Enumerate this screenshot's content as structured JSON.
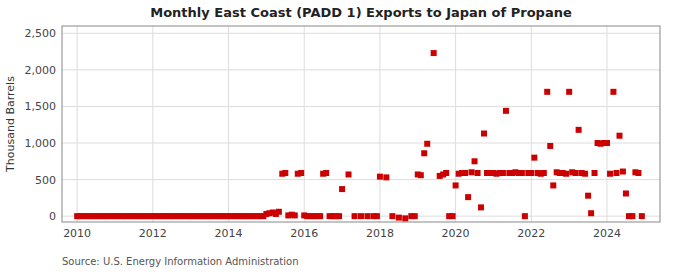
{
  "chart_data": {
    "type": "scatter",
    "title": "Monthly East Coast (PADD 1) Exports to Japan of Propane",
    "ylabel": "Thousand Barrels",
    "source": "Source: U.S. Energy Information Administration",
    "color": "#cc0000",
    "marker": "square",
    "grid": true,
    "xlim": [
      2009.6,
      2025.4
    ],
    "ylim": [
      -80,
      2600
    ],
    "xticks": [
      2010,
      2012,
      2014,
      2016,
      2018,
      2020,
      2022,
      2024
    ],
    "yticks": [
      0,
      500,
      {
        "value": 1000,
        "label": "1,000"
      },
      {
        "value": 1500,
        "label": "1,500"
      },
      {
        "value": 2000,
        "label": "2,000"
      },
      {
        "value": 2500,
        "label": "2,500"
      }
    ],
    "x": [
      2010.0,
      2010.08,
      2010.17,
      2010.25,
      2010.33,
      2010.42,
      2010.5,
      2010.58,
      2010.67,
      2010.75,
      2010.83,
      2010.92,
      2011.0,
      2011.08,
      2011.17,
      2011.25,
      2011.33,
      2011.42,
      2011.5,
      2011.58,
      2011.67,
      2011.75,
      2011.83,
      2011.92,
      2012.0,
      2012.08,
      2012.17,
      2012.25,
      2012.33,
      2012.42,
      2012.5,
      2012.58,
      2012.67,
      2012.75,
      2012.83,
      2012.92,
      2013.0,
      2013.08,
      2013.17,
      2013.25,
      2013.33,
      2013.42,
      2013.5,
      2013.58,
      2013.67,
      2013.75,
      2013.83,
      2013.92,
      2014.0,
      2014.08,
      2014.17,
      2014.25,
      2014.33,
      2014.42,
      2014.5,
      2014.58,
      2014.67,
      2014.75,
      2014.83,
      2014.92,
      2015.0,
      2015.08,
      2015.17,
      2015.25,
      2015.33,
      2015.42,
      2015.5,
      2015.58,
      2015.67,
      2015.75,
      2015.83,
      2015.92,
      2016.0,
      2016.08,
      2016.17,
      2016.25,
      2016.33,
      2016.42,
      2016.5,
      2016.58,
      2016.67,
      2016.75,
      2016.83,
      2016.92,
      2017.0,
      2017.17,
      2017.33,
      2017.5,
      2017.67,
      2017.83,
      2017.92,
      2018.0,
      2018.17,
      2018.33,
      2018.5,
      2018.67,
      2018.83,
      2018.92,
      2019.0,
      2019.08,
      2019.17,
      2019.25,
      2019.42,
      2019.58,
      2019.67,
      2019.75,
      2019.83,
      2019.92,
      2020.0,
      2020.08,
      2020.17,
      2020.25,
      2020.33,
      2020.42,
      2020.5,
      2020.58,
      2020.67,
      2020.75,
      2020.83,
      2020.92,
      2021.0,
      2021.08,
      2021.17,
      2021.25,
      2021.33,
      2021.42,
      2021.5,
      2021.58,
      2021.67,
      2021.75,
      2021.83,
      2021.92,
      2022.0,
      2022.08,
      2022.17,
      2022.25,
      2022.33,
      2022.42,
      2022.5,
      2022.58,
      2022.67,
      2022.75,
      2022.83,
      2022.92,
      2023.0,
      2023.08,
      2023.17,
      2023.25,
      2023.33,
      2023.42,
      2023.5,
      2023.58,
      2023.67,
      2023.75,
      2023.83,
      2023.92,
      2024.0,
      2024.08,
      2024.17,
      2024.25,
      2024.33,
      2024.42,
      2024.5,
      2024.58,
      2024.67,
      2024.75,
      2024.83,
      2024.92
    ],
    "values": [
      0,
      0,
      0,
      0,
      0,
      0,
      0,
      0,
      0,
      0,
      0,
      0,
      0,
      0,
      0,
      0,
      0,
      0,
      0,
      0,
      0,
      0,
      0,
      0,
      0,
      0,
      0,
      0,
      0,
      0,
      0,
      0,
      0,
      0,
      0,
      0,
      0,
      0,
      0,
      0,
      0,
      0,
      0,
      0,
      0,
      0,
      0,
      0,
      0,
      0,
      0,
      0,
      0,
      0,
      0,
      0,
      0,
      0,
      0,
      0,
      30,
      40,
      50,
      30,
      60,
      580,
      590,
      10,
      20,
      10,
      580,
      590,
      10,
      0,
      0,
      0,
      0,
      0,
      580,
      590,
      0,
      0,
      0,
      0,
      370,
      570,
      0,
      0,
      0,
      0,
      0,
      540,
      530,
      0,
      -20,
      -30,
      0,
      0,
      570,
      560,
      860,
      990,
      2230,
      550,
      570,
      590,
      0,
      0,
      420,
      580,
      590,
      590,
      260,
      600,
      750,
      590,
      120,
      1130,
      590,
      590,
      590,
      580,
      590,
      590,
      1440,
      590,
      590,
      600,
      590,
      590,
      0,
      590,
      590,
      800,
      590,
      580,
      590,
      1700,
      960,
      420,
      600,
      590,
      590,
      580,
      1700,
      600,
      590,
      1180,
      590,
      580,
      280,
      40,
      590,
      1000,
      990,
      1000,
      1000,
      580,
      1700,
      590,
      1100,
      610,
      310,
      0,
      0,
      600,
      590,
      0
    ]
  }
}
